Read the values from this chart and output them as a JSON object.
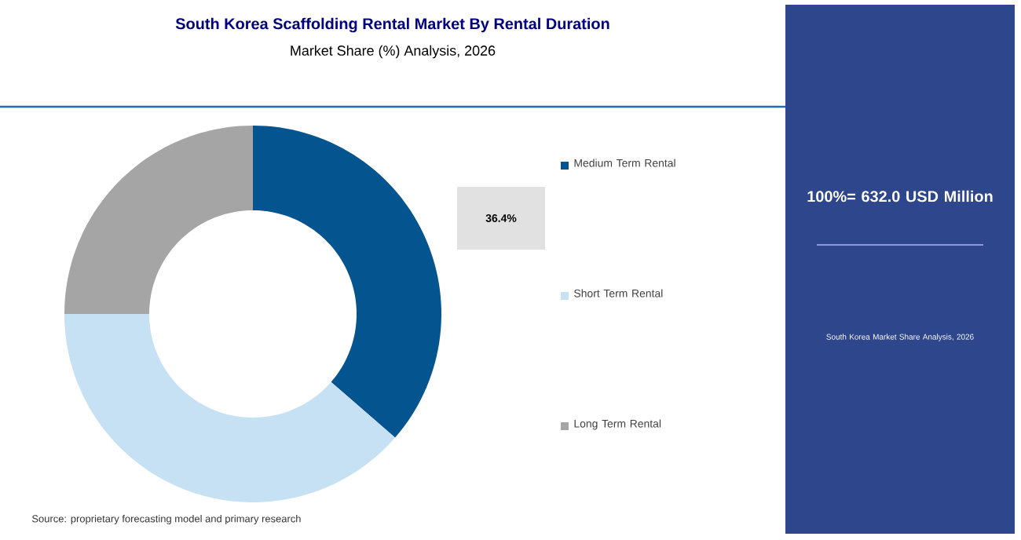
{
  "chart_data": {
    "type": "donut",
    "title": "South Korea Scaffolding Rental Market By Rental Duration",
    "subtitle": "Market Share (%) Analysis, 2026",
    "categories": [
      "Medium Term Rental",
      "Short Term Rental",
      "Long Term Rental"
    ],
    "values": [
      36.4,
      38.6,
      25
    ],
    "colors": [
      "#04558f",
      "#c5e1f3",
      "#a5a5a5"
    ],
    "value_labels": [
      "36.4%",
      null,
      null
    ],
    "legend": "right",
    "annotations": [
      "100%= 632.0 USD Million",
      "South Korea Market Share Analysis, 2026",
      "Source: proprietary forecasting model and primary research"
    ]
  }
}
